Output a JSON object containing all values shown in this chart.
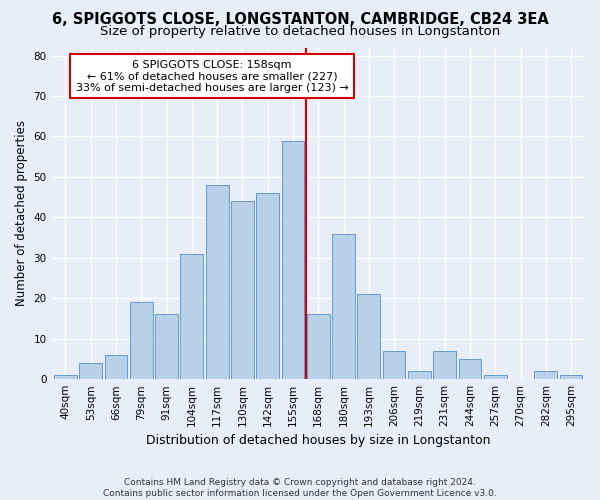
{
  "title_line1": "6, SPIGGOTS CLOSE, LONGSTANTON, CAMBRIDGE, CB24 3EA",
  "title_line2": "Size of property relative to detached houses in Longstanton",
  "xlabel": "Distribution of detached houses by size in Longstanton",
  "ylabel": "Number of detached properties",
  "footnote1": "Contains HM Land Registry data © Crown copyright and database right 2024.",
  "footnote2": "Contains public sector information licensed under the Open Government Licence v3.0.",
  "bar_labels": [
    "40sqm",
    "53sqm",
    "66sqm",
    "79sqm",
    "91sqm",
    "104sqm",
    "117sqm",
    "130sqm",
    "142sqm",
    "155sqm",
    "168sqm",
    "180sqm",
    "193sqm",
    "206sqm",
    "219sqm",
    "231sqm",
    "244sqm",
    "257sqm",
    "270sqm",
    "282sqm",
    "295sqm"
  ],
  "bar_values": [
    1,
    4,
    6,
    19,
    16,
    31,
    48,
    44,
    46,
    59,
    16,
    36,
    21,
    7,
    2,
    7,
    5,
    1,
    0,
    2,
    1
  ],
  "bar_color": "#b8d0e8",
  "bar_edge_color": "#6699cc",
  "reference_line_x": 9.5,
  "reference_label": "6 SPIGGOTS CLOSE: 158sqm",
  "annotation_line2": "← 61% of detached houses are smaller (227)",
  "annotation_line3": "33% of semi-detached houses are larger (123) →",
  "ylim": [
    0,
    82
  ],
  "yticks": [
    0,
    10,
    20,
    30,
    40,
    50,
    60,
    70,
    80
  ],
  "bg_color": "#e8eef8",
  "grid_color": "#ffffff",
  "annotation_box_facecolor": "#ffffff",
  "annotation_box_edge_color": "#cc0000",
  "ref_line_color": "#cc0000",
  "title_fontsize": 10.5,
  "subtitle_fontsize": 9.5,
  "tick_fontsize": 7.5,
  "ylabel_fontsize": 8.5,
  "xlabel_fontsize": 9,
  "annotation_fontsize": 8,
  "footnote_fontsize": 6.5
}
